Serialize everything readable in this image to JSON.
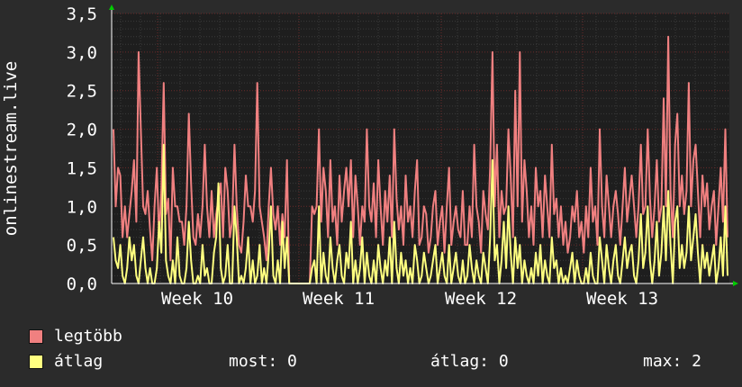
{
  "chart_data": {
    "type": "line",
    "ylabel": "onlinestream.live",
    "ylim": [
      0,
      3.5
    ],
    "y_ticks": [
      "0,0",
      "0,5",
      "1,0",
      "1,5",
      "2,0",
      "2,5",
      "3,0",
      "3,5"
    ],
    "x_tick_labels": [
      "Week 10",
      "Week 11",
      "Week 12",
      "Week 13"
    ],
    "grid": true,
    "legend_placement": "bottom-left",
    "series": [
      {
        "name": "legtöbb",
        "color": "#f08080",
        "values": [
          2.0,
          1.0,
          1.5,
          1.4,
          0.6,
          1.0,
          0.6,
          0.9,
          1.2,
          1.6,
          0.8,
          3.0,
          2.0,
          1.0,
          0.9,
          1.2,
          0.7,
          0.3,
          1.0,
          1.5,
          0.6,
          1.2,
          2.6,
          0.9,
          1.1,
          0.3,
          1.5,
          1.0,
          1.0,
          0.8,
          0.8,
          0.5,
          1.0,
          2.2,
          1.3,
          0.6,
          0.5,
          0.9,
          0.6,
          1.0,
          1.8,
          1.0,
          0.6,
          1.2,
          0.6,
          0.9,
          1.1,
          1.3,
          0.6,
          1.5,
          1.2,
          0.6,
          0.8,
          1.8,
          1.0,
          0.5,
          0.4,
          0.8,
          1.4,
          1.0,
          1.0,
          0.8,
          1.2,
          2.6,
          1.0,
          0.8,
          0.6,
          0.3,
          1.0,
          1.5,
          0.9,
          0.7,
          1.0,
          0.5,
          0.9,
          0.6,
          1.6,
          0.0,
          0.0,
          0.0,
          0.0,
          0.0,
          0.0,
          0.0,
          0.0,
          0.0,
          0.0,
          1.0,
          0.9,
          1.0,
          2.0,
          0.8,
          1.5,
          1.2,
          0.6,
          1.6,
          0.8,
          1.0,
          0.5,
          1.4,
          0.8,
          1.2,
          1.5,
          1.0,
          1.6,
          0.6,
          1.4,
          1.0,
          0.5,
          1.0,
          0.8,
          2.0,
          1.0,
          0.8,
          1.3,
          0.6,
          1.6,
          1.0,
          0.5,
          1.2,
          0.8,
          1.4,
          0.6,
          2.0,
          1.1,
          0.7,
          1.0,
          0.5,
          1.4,
          0.8,
          1.0,
          0.6,
          1.2,
          1.6,
          0.5,
          0.6,
          1.0,
          0.9,
          0.4,
          0.6,
          1.0,
          1.2,
          0.5,
          0.8,
          1.0,
          0.4,
          1.0,
          1.5,
          0.5,
          0.8,
          1.0,
          0.7,
          0.6,
          1.2,
          0.5,
          0.5,
          1.0,
          0.6,
          1.8,
          1.0,
          0.8,
          0.4,
          1.2,
          0.9,
          0.7,
          1.5,
          3.0,
          1.0,
          1.8,
          0.6,
          1.2,
          0.9,
          1.0,
          2.0,
          1.4,
          0.6,
          2.5,
          1.0,
          3.0,
          0.8,
          1.6,
          1.2,
          0.6,
          1.0,
          0.5,
          1.5,
          1.0,
          1.2,
          0.6,
          1.4,
          1.0,
          0.6,
          1.8,
          0.9,
          1.1,
          0.6,
          1.0,
          0.5,
          0.8,
          0.4,
          0.6,
          1.0,
          0.8,
          1.2,
          0.6,
          0.8,
          0.4,
          1.0,
          0.6,
          1.5,
          0.8,
          1.0,
          0.5,
          2.0,
          1.0,
          0.6,
          1.4,
          1.0,
          0.6,
          1.0,
          1.2,
          0.9,
          0.5,
          1.0,
          1.5,
          0.8,
          1.1,
          1.4,
          1.0,
          0.6,
          1.0,
          1.8,
          0.9,
          1.0,
          2.0,
          1.1,
          0.6,
          1.0,
          1.6,
          0.8,
          1.0,
          2.4,
          1.0,
          3.2,
          1.2,
          0.6,
          1.8,
          2.2,
          1.0,
          1.4,
          0.9,
          1.2,
          2.6,
          1.0,
          1.6,
          1.8,
          1.2,
          0.6,
          1.4,
          1.0,
          1.3,
          0.7,
          1.0,
          1.2,
          0.5,
          1.0,
          1.5,
          0.8,
          2.0,
          0.6
        ]
      },
      {
        "name": "átlag",
        "color": "#ffff80",
        "values": [
          0.6,
          0.3,
          0.2,
          0.5,
          0.1,
          0.0,
          0.2,
          0.6,
          0.3,
          0.5,
          0.1,
          0.0,
          0.3,
          0.6,
          0.2,
          0.0,
          0.2,
          0.0,
          0.0,
          0.2,
          0.8,
          0.4,
          1.8,
          0.3,
          0.1,
          0.0,
          0.3,
          0.0,
          0.6,
          0.1,
          0.0,
          0.0,
          0.2,
          0.8,
          0.3,
          0.0,
          0.0,
          0.1,
          0.0,
          0.5,
          0.1,
          0.2,
          0.0,
          0.0,
          0.4,
          0.6,
          1.3,
          0.2,
          0.0,
          0.1,
          0.5,
          0.0,
          0.0,
          1.0,
          0.6,
          0.0,
          0.1,
          0.0,
          0.2,
          0.6,
          0.0,
          0.3,
          0.0,
          0.1,
          0.5,
          0.0,
          0.2,
          0.0,
          0.4,
          1.0,
          0.1,
          0.0,
          0.3,
          0.0,
          0.8,
          0.2,
          0.6,
          0.0,
          0.0,
          0.0,
          0.0,
          0.0,
          0.0,
          0.0,
          0.0,
          0.0,
          0.0,
          0.2,
          0.3,
          0.0,
          1.0,
          0.0,
          0.4,
          0.1,
          0.0,
          0.6,
          0.2,
          0.0,
          0.3,
          0.5,
          0.1,
          0.0,
          0.4,
          0.2,
          0.8,
          0.0,
          0.3,
          0.0,
          0.2,
          0.6,
          0.0,
          0.4,
          0.1,
          0.0,
          0.3,
          0.0,
          0.5,
          0.2,
          0.0,
          0.3,
          0.1,
          0.6,
          0.0,
          0.8,
          0.2,
          0.0,
          0.4,
          0.1,
          0.3,
          0.0,
          0.2,
          0.0,
          0.5,
          0.3,
          0.0,
          0.1,
          0.4,
          0.2,
          0.0,
          0.1,
          0.3,
          0.5,
          0.0,
          0.2,
          0.4,
          0.1,
          0.0,
          0.5,
          0.0,
          0.2,
          0.4,
          0.1,
          0.0,
          0.3,
          0.0,
          0.1,
          0.5,
          0.2,
          0.0,
          0.3,
          0.1,
          0.0,
          0.4,
          0.2,
          0.0,
          0.6,
          1.6,
          0.3,
          0.5,
          0.0,
          0.3,
          0.8,
          0.2,
          1.0,
          0.4,
          0.0,
          0.6,
          0.2,
          0.5,
          0.0,
          0.3,
          0.1,
          0.0,
          0.2,
          0.0,
          0.4,
          0.1,
          0.5,
          0.0,
          0.3,
          0.1,
          0.0,
          0.6,
          0.2,
          0.3,
          0.0,
          0.2,
          0.0,
          0.1,
          0.0,
          0.2,
          0.4,
          0.0,
          0.3,
          0.1,
          0.0,
          0.0,
          0.2,
          0.0,
          0.4,
          0.1,
          0.0,
          0.0,
          0.6,
          0.3,
          0.0,
          0.5,
          0.2,
          0.0,
          0.3,
          0.5,
          0.1,
          0.0,
          0.3,
          0.6,
          0.2,
          0.4,
          0.5,
          0.1,
          0.0,
          0.3,
          0.9,
          0.2,
          0.4,
          1.0,
          0.3,
          0.0,
          0.3,
          0.8,
          0.1,
          0.4,
          1.0,
          0.3,
          1.2,
          0.5,
          0.0,
          0.8,
          1.0,
          0.2,
          0.5,
          0.2,
          0.4,
          1.0,
          0.3,
          0.6,
          0.9,
          0.4,
          0.0,
          0.5,
          0.2,
          0.4,
          0.1,
          0.3,
          0.5,
          0.0,
          0.2,
          0.6,
          0.1,
          1.0,
          0.1
        ]
      }
    ]
  },
  "legend": [
    {
      "name": "legtöbb",
      "color": "#f08080"
    },
    {
      "name": "átlag",
      "color": "#ffff80"
    }
  ],
  "stats": {
    "now": "most: 0",
    "avg": "átlag: 0",
    "max": "max: 2"
  }
}
